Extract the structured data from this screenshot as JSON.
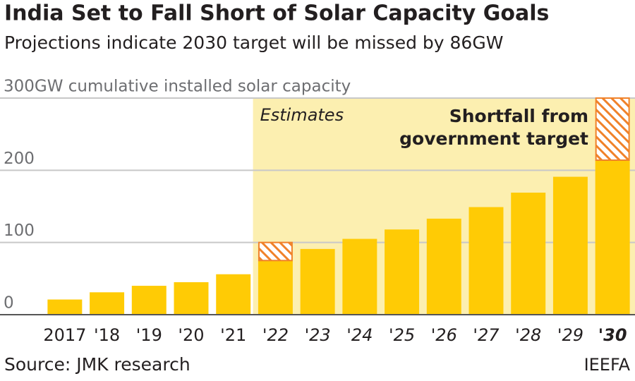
{
  "chart_data": {
    "type": "bar",
    "title": "India Set to Fall Short of Solar Capacity Goals",
    "subtitle": "Projections indicate 2030 target will be missed by 86GW",
    "categories": [
      "2017",
      "'18",
      "'19",
      "'20",
      "'21",
      "'22",
      "'23",
      "'24",
      "'25",
      "'26",
      "'27",
      "'28",
      "'29",
      "'30"
    ],
    "values": [
      21,
      31,
      40,
      45,
      56,
      75,
      91,
      105,
      118,
      133,
      149,
      169,
      191,
      214
    ],
    "shortfall": [
      null,
      null,
      null,
      null,
      null,
      25,
      null,
      null,
      null,
      null,
      null,
      null,
      null,
      86
    ],
    "color": "#ffcb05",
    "shortfall_color": "#f0822a",
    "shade_color": "#fcefb0",
    "shade_start_index": 5,
    "shade_label": "Estimates",
    "annotation": [
      "Shortfall from",
      "government target"
    ],
    "ylim": [
      0,
      300
    ],
    "yticks": [
      0,
      100,
      200,
      {
        "value": 300,
        "label": "300GW cumulative installed solar capacity"
      }
    ],
    "grid": true,
    "source": "Source: JMK research",
    "credit": "IEEFA"
  }
}
